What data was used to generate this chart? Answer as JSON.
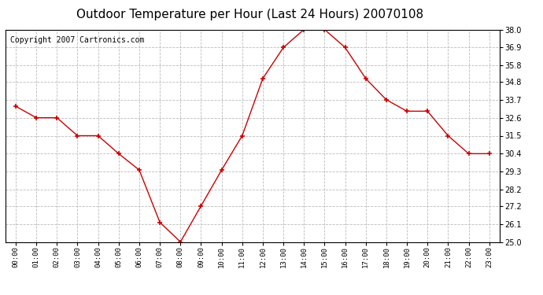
{
  "title": "Outdoor Temperature per Hour (Last 24 Hours) 20070108",
  "copyright_text": "Copyright 2007 Cartronics.com",
  "hours": [
    "00:00",
    "01:00",
    "02:00",
    "03:00",
    "04:00",
    "05:00",
    "06:00",
    "07:00",
    "08:00",
    "09:00",
    "10:00",
    "11:00",
    "12:00",
    "13:00",
    "14:00",
    "15:00",
    "16:00",
    "17:00",
    "18:00",
    "19:00",
    "20:00",
    "21:00",
    "22:00",
    "23:00"
  ],
  "temps": [
    33.3,
    32.6,
    32.6,
    31.5,
    31.5,
    30.4,
    29.4,
    26.2,
    25.0,
    27.2,
    29.4,
    31.5,
    35.0,
    36.9,
    38.0,
    38.0,
    36.9,
    35.0,
    33.7,
    33.0,
    33.0,
    31.5,
    30.4,
    30.4
  ],
  "ylim": [
    25.0,
    38.0
  ],
  "yticks": [
    25.0,
    26.1,
    27.2,
    28.2,
    29.3,
    30.4,
    31.5,
    32.6,
    33.7,
    34.8,
    35.8,
    36.9,
    38.0
  ],
  "line_color": "#cc0000",
  "marker": "+",
  "marker_color": "#cc0000",
  "bg_color": "#ffffff",
  "grid_color": "#bbbbbb",
  "title_fontsize": 11,
  "copyright_fontsize": 7
}
